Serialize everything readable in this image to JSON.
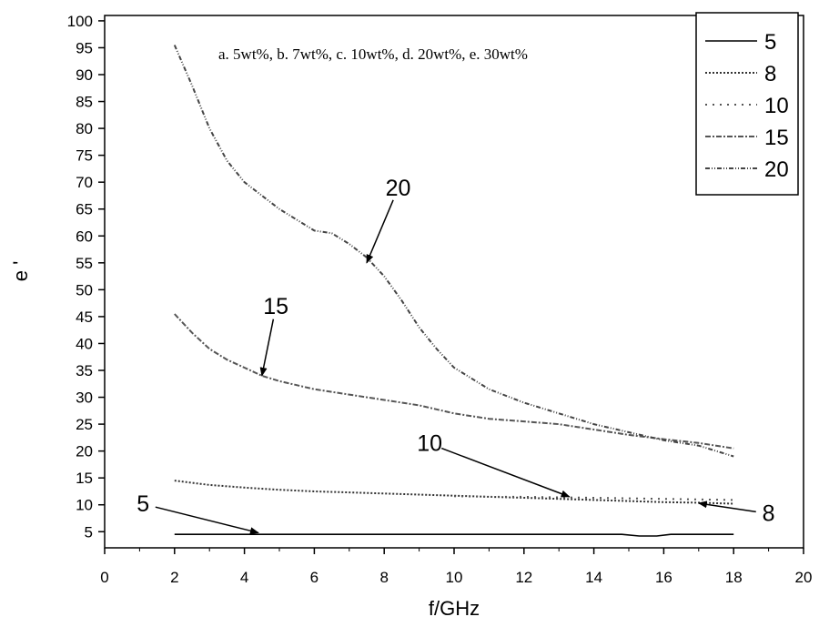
{
  "chart_data": {
    "type": "line",
    "xlabel": "f/GHz",
    "ylabel": "e '",
    "xlim": [
      0,
      20
    ],
    "ylim": [
      2,
      101
    ],
    "x_ticks": [
      0,
      2,
      4,
      6,
      8,
      10,
      12,
      14,
      16,
      18,
      20
    ],
    "y_ticks": [
      5,
      10,
      15,
      20,
      25,
      30,
      35,
      40,
      45,
      50,
      55,
      60,
      65,
      70,
      75,
      80,
      85,
      90,
      95,
      100
    ],
    "note": "a. 5wt%, b. 7wt%, c. 10wt%, d. 20wt%, e. 30wt%",
    "legend_position": "top-right",
    "grid": false,
    "series": [
      {
        "name": "5",
        "style": "solid",
        "color": "#000000",
        "points": [
          [
            2,
            4.5
          ],
          [
            4,
            4.5
          ],
          [
            6,
            4.5
          ],
          [
            8,
            4.5
          ],
          [
            10,
            4.5
          ],
          [
            12,
            4.5
          ],
          [
            14,
            4.5
          ],
          [
            14.8,
            4.5
          ],
          [
            15.3,
            4.2
          ],
          [
            15.8,
            4.2
          ],
          [
            16.2,
            4.5
          ],
          [
            18,
            4.5
          ]
        ]
      },
      {
        "name": "8",
        "style": "dense-dot",
        "color": "#333333",
        "points": [
          [
            2,
            14.5
          ],
          [
            3,
            13.7
          ],
          [
            4,
            13.2
          ],
          [
            5,
            12.8
          ],
          [
            6,
            12.5
          ],
          [
            7,
            12.3
          ],
          [
            8,
            12.1
          ],
          [
            9,
            11.9
          ],
          [
            10,
            11.7
          ],
          [
            11,
            11.5
          ],
          [
            12,
            11.3
          ],
          [
            13,
            11.1
          ],
          [
            14,
            10.9
          ],
          [
            15,
            10.7
          ],
          [
            16,
            10.5
          ],
          [
            17,
            10.4
          ],
          [
            18,
            10.2
          ]
        ]
      },
      {
        "name": "10",
        "style": "sparse-dot",
        "color": "#555555",
        "points": [
          [
            10,
            11.6
          ],
          [
            11,
            11.5
          ],
          [
            12,
            11.5
          ],
          [
            13,
            11.4
          ],
          [
            14,
            11.3
          ],
          [
            15,
            11.2
          ],
          [
            16,
            11.1
          ],
          [
            17,
            11.0
          ],
          [
            18,
            10.9
          ]
        ]
      },
      {
        "name": "15",
        "style": "dash-dot",
        "color": "#555555",
        "points": [
          [
            2,
            45.5
          ],
          [
            2.5,
            42
          ],
          [
            3,
            39
          ],
          [
            3.5,
            37
          ],
          [
            4,
            35.5
          ],
          [
            4.5,
            34
          ],
          [
            5,
            33
          ],
          [
            6,
            31.5
          ],
          [
            7,
            30.5
          ],
          [
            8,
            29.5
          ],
          [
            9,
            28.5
          ],
          [
            10,
            27
          ],
          [
            11,
            26
          ],
          [
            12,
            25.5
          ],
          [
            13,
            25
          ],
          [
            14,
            24
          ],
          [
            15,
            23
          ],
          [
            16,
            22.2
          ],
          [
            17,
            21.5
          ],
          [
            18,
            20.5
          ]
        ]
      },
      {
        "name": "20",
        "style": "dash-dot-dot",
        "color": "#444444",
        "points": [
          [
            2,
            95.5
          ],
          [
            2.5,
            88
          ],
          [
            3,
            80
          ],
          [
            3.5,
            74
          ],
          [
            4,
            70
          ],
          [
            5,
            65
          ],
          [
            6,
            61
          ],
          [
            6.5,
            60.5
          ],
          [
            7,
            58.5
          ],
          [
            7.5,
            56
          ],
          [
            8,
            52.5
          ],
          [
            8.5,
            48
          ],
          [
            9,
            43
          ],
          [
            9.5,
            39
          ],
          [
            10,
            35.5
          ],
          [
            11,
            31.5
          ],
          [
            12,
            29
          ],
          [
            13,
            27
          ],
          [
            14,
            25
          ],
          [
            15,
            23.5
          ],
          [
            16,
            22
          ],
          [
            17,
            21
          ],
          [
            18,
            19
          ]
        ]
      }
    ],
    "annotations": [
      {
        "text": "20",
        "text_at": [
          8.4,
          67.5
        ],
        "arrow_to": [
          7.5,
          55
        ]
      },
      {
        "text": "15",
        "text_at": [
          4.9,
          45.5
        ],
        "arrow_to": [
          4.5,
          34
        ]
      },
      {
        "text": "10",
        "text_at": [
          9.3,
          20
        ],
        "arrow_to": [
          13.3,
          11.5
        ]
      },
      {
        "text": "8",
        "text_at": [
          19.0,
          7.0
        ],
        "arrow_to": [
          17.0,
          10.3
        ]
      },
      {
        "text": "5",
        "text_at": [
          1.1,
          8.8
        ],
        "arrow_to": [
          4.4,
          4.8
        ]
      }
    ]
  }
}
